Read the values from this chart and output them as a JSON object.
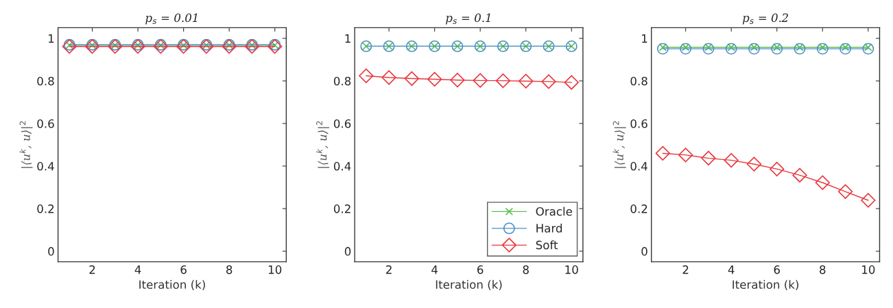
{
  "chart_data": [
    {
      "type": "line",
      "title": "p$_{s}$ = 0.01",
      "xlabel": "Iteration (k)",
      "ylabel": "|⟨u$^{k}$, u⟩|$^{2}$",
      "x": [
        1,
        2,
        3,
        4,
        5,
        6,
        7,
        8,
        9,
        10
      ],
      "xlim": [
        0.5,
        10.5
      ],
      "ylim": [
        -0.05,
        1.05
      ],
      "xticks": [
        2,
        4,
        6,
        8,
        10
      ],
      "yticks": [
        0,
        0.2,
        0.4,
        0.6,
        0.8,
        1
      ],
      "grid": false,
      "legend": false,
      "series": [
        {
          "color": "#5cbf4f",
          "marker": "cross",
          "values": [
            0.968,
            0.968,
            0.968,
            0.968,
            0.968,
            0.968,
            0.968,
            0.968,
            0.968,
            0.968
          ]
        },
        {
          "color": "#4a90c8",
          "marker": "circle",
          "values": [
            0.97,
            0.97,
            0.97,
            0.97,
            0.97,
            0.97,
            0.97,
            0.97,
            0.97,
            0.97
          ]
        },
        {
          "color": "#e8383d",
          "marker": "diamond",
          "values": [
            0.962,
            0.962,
            0.962,
            0.962,
            0.962,
            0.962,
            0.962,
            0.962,
            0.962,
            0.962
          ]
        }
      ]
    },
    {
      "type": "line",
      "title": "p$_{s}$ = 0.1",
      "xlabel": "Iteration (k)",
      "ylabel": "|⟨u$^{k}$, u⟩|$^{2}$",
      "x": [
        1,
        2,
        3,
        4,
        5,
        6,
        7,
        8,
        9,
        10
      ],
      "xlim": [
        0.5,
        10.5
      ],
      "ylim": [
        -0.05,
        1.05
      ],
      "xticks": [
        2,
        4,
        6,
        8,
        10
      ],
      "yticks": [
        0,
        0.2,
        0.4,
        0.6,
        0.8,
        1
      ],
      "grid": false,
      "legend": "bottom right",
      "series": [
        {
          "name": "Oracle",
          "color": "#5cbf4f",
          "marker": "cross",
          "values": [
            0.963,
            0.963,
            0.963,
            0.963,
            0.963,
            0.963,
            0.963,
            0.963,
            0.963,
            0.963
          ]
        },
        {
          "name": "Hard",
          "color": "#4a90c8",
          "marker": "circle",
          "values": [
            0.963,
            0.963,
            0.963,
            0.963,
            0.963,
            0.963,
            0.963,
            0.963,
            0.963,
            0.963
          ]
        },
        {
          "name": "Soft",
          "color": "#e8383d",
          "marker": "diamond",
          "values": [
            0.824,
            0.816,
            0.811,
            0.808,
            0.804,
            0.802,
            0.801,
            0.799,
            0.797,
            0.793
          ]
        }
      ]
    },
    {
      "type": "line",
      "title": "p$_{s}$ = 0.2",
      "xlabel": "Iteration (k)",
      "ylabel": "|⟨u$^{k}$, u⟩|$^{2}$",
      "x": [
        1,
        2,
        3,
        4,
        5,
        6,
        7,
        8,
        9,
        10
      ],
      "xlim": [
        0.5,
        10.5
      ],
      "ylim": [
        -0.05,
        1.05
      ],
      "xticks": [
        2,
        4,
        6,
        8,
        10
      ],
      "yticks": [
        0,
        0.2,
        0.4,
        0.6,
        0.8,
        1
      ],
      "grid": false,
      "legend": false,
      "series": [
        {
          "color": "#5cbf4f",
          "marker": "cross",
          "values": [
            0.958,
            0.958,
            0.958,
            0.958,
            0.958,
            0.958,
            0.958,
            0.958,
            0.958,
            0.958
          ]
        },
        {
          "color": "#4a90c8",
          "marker": "circle",
          "values": [
            0.951,
            0.951,
            0.951,
            0.951,
            0.951,
            0.951,
            0.951,
            0.951,
            0.951,
            0.951
          ]
        },
        {
          "color": "#e8383d",
          "marker": "diamond",
          "values": [
            0.46,
            0.452,
            0.437,
            0.427,
            0.409,
            0.386,
            0.357,
            0.322,
            0.28,
            0.239
          ]
        }
      ]
    }
  ]
}
